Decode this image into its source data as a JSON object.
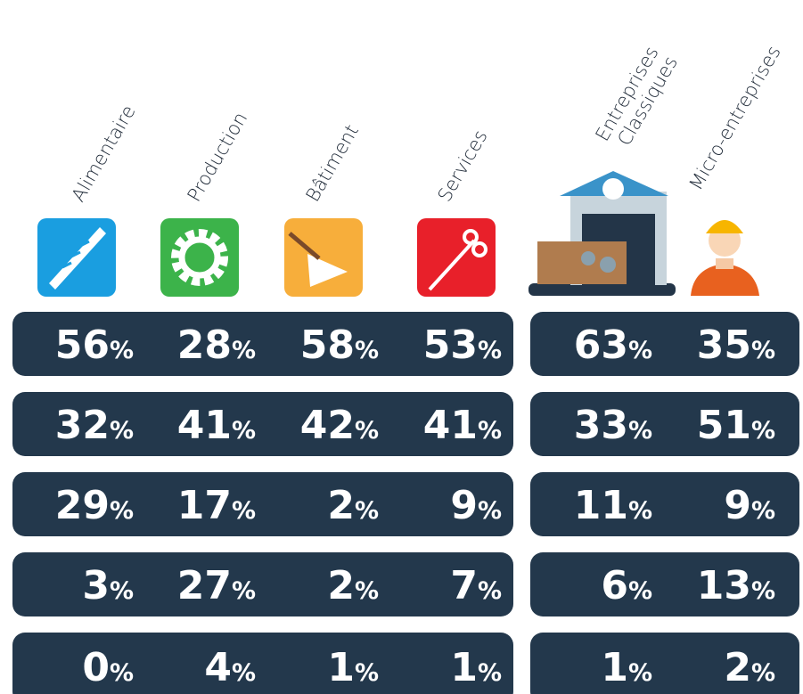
{
  "table": {
    "columns": [
      {
        "lines": [
          "Alimentaire"
        ]
      },
      {
        "lines": [
          "Production"
        ]
      },
      {
        "lines": [
          "Bâtiment"
        ]
      },
      {
        "lines": [
          "Services"
        ]
      },
      {
        "lines": [
          "Entreprises",
          "Classiques"
        ]
      },
      {
        "lines": [
          "Micro-entreprises"
        ]
      }
    ],
    "rows": [
      [
        {
          "value": 56,
          "unit": "%"
        },
        {
          "value": 28,
          "unit": "%"
        },
        {
          "value": 58,
          "unit": "%"
        },
        {
          "value": 53,
          "unit": "%"
        },
        {
          "value": 63,
          "unit": "%"
        },
        {
          "value": 35,
          "unit": "%"
        }
      ],
      [
        {
          "value": 32,
          "unit": "%"
        },
        {
          "value": 41,
          "unit": "%"
        },
        {
          "value": 42,
          "unit": "%"
        },
        {
          "value": 41,
          "unit": "%"
        },
        {
          "value": 33,
          "unit": "%"
        },
        {
          "value": 51,
          "unit": "%"
        }
      ],
      [
        {
          "value": 29,
          "unit": "%"
        },
        {
          "value": 17,
          "unit": "%"
        },
        {
          "value": 2,
          "unit": "%"
        },
        {
          "value": 9,
          "unit": "%"
        },
        {
          "value": 11,
          "unit": "%"
        },
        {
          "value": 9,
          "unit": "%"
        }
      ],
      [
        {
          "value": 3,
          "unit": "%"
        },
        {
          "value": 27,
          "unit": "%"
        },
        {
          "value": 2,
          "unit": "%"
        },
        {
          "value": 7,
          "unit": "%"
        },
        {
          "value": 6,
          "unit": "%"
        },
        {
          "value": 13,
          "unit": "%"
        }
      ],
      [
        {
          "value": 0,
          "unit": "%"
        },
        {
          "value": 4,
          "unit": "%"
        },
        {
          "value": 1,
          "unit": "%"
        },
        {
          "value": 1,
          "unit": "%"
        },
        {
          "value": 1,
          "unit": "%"
        },
        {
          "value": 2,
          "unit": "%"
        }
      ]
    ]
  }
}
